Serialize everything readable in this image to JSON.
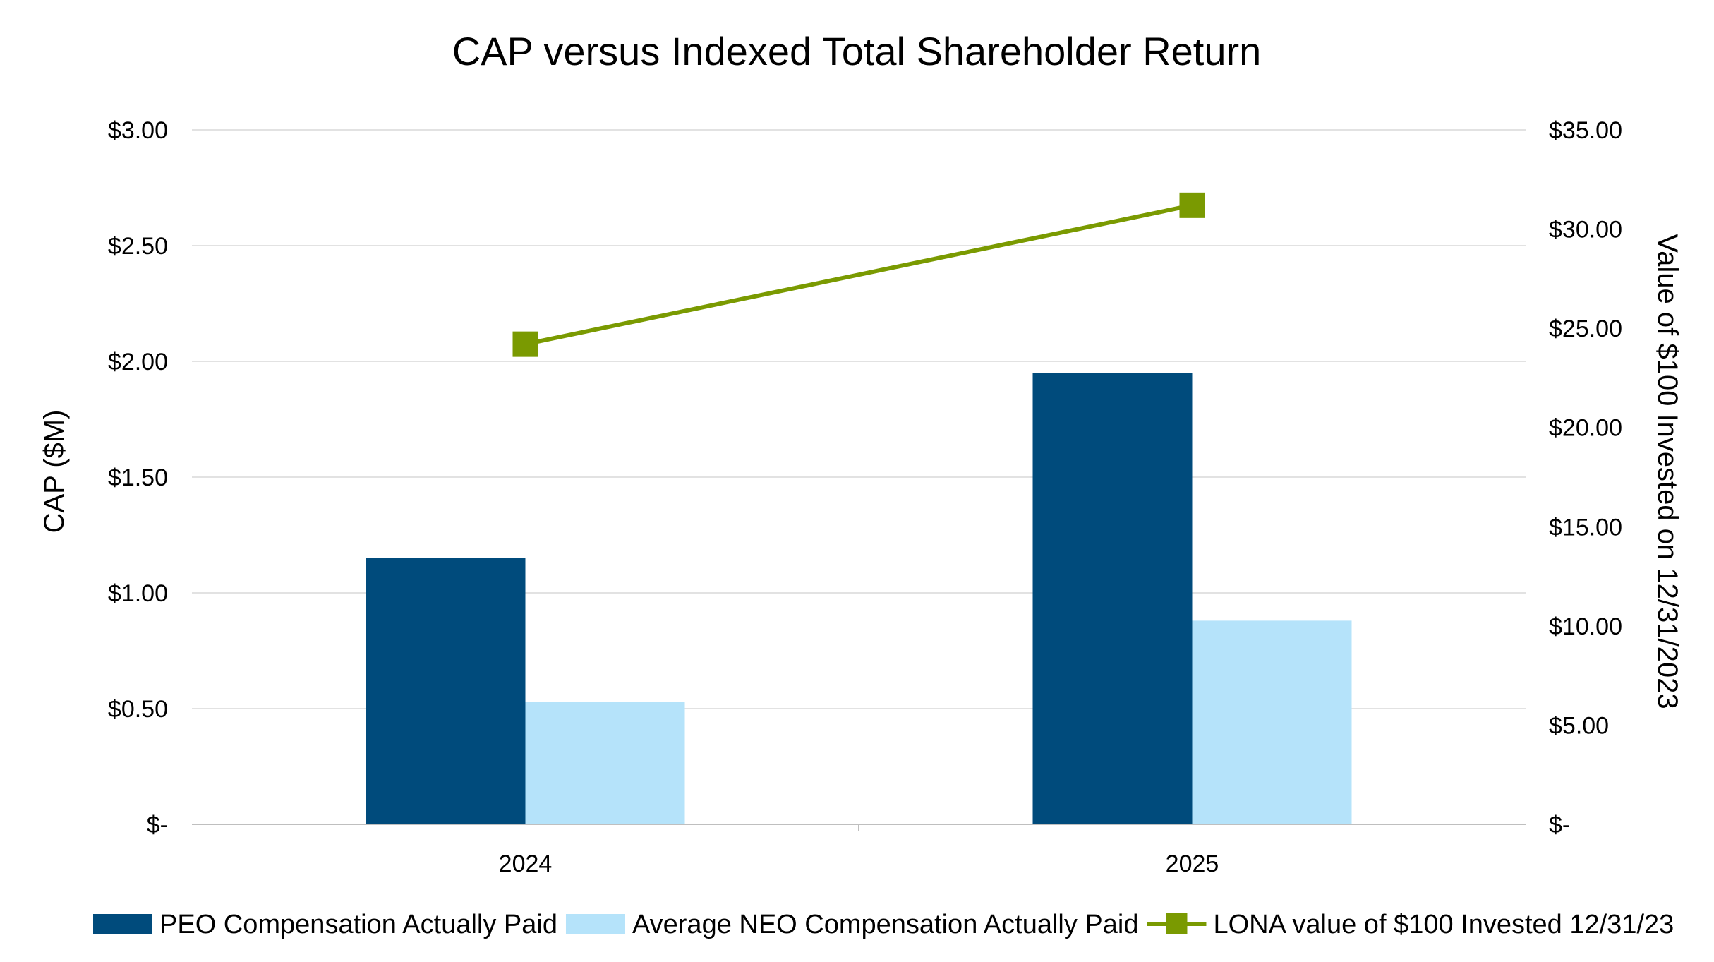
{
  "chart_data": {
    "type": "bar",
    "title": "CAP versus Indexed Total Shareholder Return",
    "categories": [
      "2024",
      "2025"
    ],
    "series": [
      {
        "name": "PEO Compensation Actually Paid",
        "type": "bar",
        "axis": "left",
        "color": "#004B7C",
        "values": [
          1.15,
          1.95
        ]
      },
      {
        "name": "Average NEO Compensation Actually Paid",
        "type": "bar",
        "axis": "left",
        "color": "#B5E3FA",
        "values": [
          0.53,
          0.88
        ]
      },
      {
        "name": "LONA value of $100 Invested 12/31/23",
        "type": "line",
        "axis": "right",
        "color": "#7A9A01",
        "marker": "square",
        "values": [
          24.2,
          31.2
        ]
      }
    ],
    "ylabel": "CAP ($M)",
    "ylabel_right": "Value of $100 Invested on 12/31/2023",
    "ylim": [
      0,
      3
    ],
    "ylim_right": [
      0,
      35
    ],
    "yticks": [
      "$-",
      "$0.50",
      "$1.00",
      "$1.50",
      "$2.00",
      "$2.50",
      "$3.00"
    ],
    "yticks_right": [
      "$-",
      "$5.00",
      "$10.00",
      "$15.00",
      "$20.00",
      "$25.00",
      "$30.00",
      "$35.00"
    ],
    "grid": true,
    "legend_position": "bottom"
  }
}
